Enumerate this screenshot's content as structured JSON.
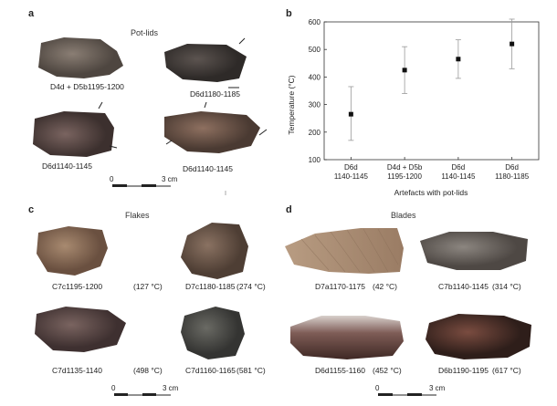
{
  "panels": {
    "a": {
      "letter": "a",
      "title": "Pot-lids",
      "items": [
        {
          "label": "D4d + D5b1195-1200",
          "color": "#6c625a"
        },
        {
          "label": "D6d1180-1185",
          "color": "#4a4440"
        },
        {
          "label": "D6d1140-1145",
          "color": "#5a4844"
        },
        {
          "label": "D6d1140-1145",
          "color": "#6e5648"
        }
      ],
      "scale": {
        "start": "0",
        "end": "3 cm"
      }
    },
    "b": {
      "letter": "b"
    },
    "c": {
      "letter": "c",
      "title": "Flakes",
      "items": [
        {
          "label": "C7c1195-1200",
          "temp": "(127 °C)",
          "color": "#8a6b52"
        },
        {
          "label": "D7c1180-1185",
          "temp": "(274 °C)",
          "color": "#6e5a4c"
        },
        {
          "label": "C7d1135-1140",
          "temp": "(498 °C)",
          "color": "#5c4844"
        },
        {
          "label": "C7d1160-1165",
          "temp": "(581 °C)",
          "color": "#4e4e4a"
        }
      ],
      "scale": {
        "start": "0",
        "end": "3 cm"
      }
    },
    "d": {
      "letter": "d",
      "title": "Blades",
      "items": [
        {
          "label": "D7a1170-1175",
          "temp": "(42 °C)",
          "color": "#a68a72"
        },
        {
          "label": "C7b1140-1145",
          "temp": "(314 °C)",
          "color": "#6e6660"
        },
        {
          "label": "D6d1155-1160",
          "temp": "(452 °C)",
          "color": "#6a5048"
        },
        {
          "label": "D6b1190-1195",
          "temp": "(617 °C)",
          "color": "#5c3c34"
        }
      ],
      "scale": {
        "start": "0",
        "end": "3 cm"
      }
    }
  },
  "chart_data": {
    "type": "scatter",
    "xlabel": "Artefacts with pot-lids",
    "ylabel": "Temperature (°C)",
    "ylim": [
      100,
      600
    ],
    "yticks": [
      100,
      200,
      300,
      400,
      500,
      600
    ],
    "categories": [
      [
        "D6d",
        "1140-1145"
      ],
      [
        "D4d + D5b",
        "1195-1200"
      ],
      [
        "D6d",
        "1140-1145"
      ],
      [
        "D6d",
        "1180-1185"
      ]
    ],
    "values": [
      265,
      425,
      465,
      520
    ],
    "error_low": [
      170,
      340,
      395,
      430
    ],
    "error_high": [
      365,
      510,
      535,
      610
    ],
    "grid": false
  }
}
